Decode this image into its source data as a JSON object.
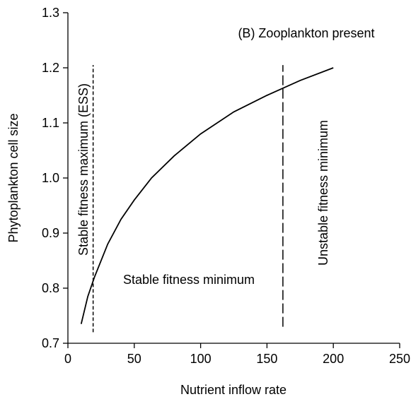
{
  "chart_data": {
    "type": "line",
    "xlabel": "Nutrient inflow rate",
    "ylabel": "Phytoplankton cell size",
    "annotations": [
      "(B) Zooplankton present",
      "Stable fitness maximum (ESS)",
      "Stable fitness minimum",
      "Unstable fitness minimum"
    ],
    "x": [
      10,
      15,
      20,
      30,
      40,
      50,
      63,
      80,
      100,
      125,
      150,
      175,
      200
    ],
    "series": [
      {
        "color": "#000000",
        "values": [
          0.735,
          0.785,
          0.82,
          0.88,
          0.925,
          0.96,
          1.0,
          1.04,
          1.08,
          1.12,
          1.15,
          1.177,
          1.2
        ]
      }
    ],
    "vlines": [
      {
        "x": 19,
        "y": [
          0.72,
          1.205
        ],
        "dash": "short"
      },
      {
        "x": 162,
        "y": [
          0.73,
          1.205
        ],
        "dash": "long"
      }
    ],
    "xlim": [
      0,
      250
    ],
    "xticks": [
      0,
      50,
      100,
      150,
      200,
      250
    ],
    "ylim": [
      0.7,
      1.3
    ],
    "yticks": [
      0.7,
      0.8,
      0.9,
      {
        "value": 1,
        "label": "1.0"
      },
      1.1,
      1.2,
      1.3
    ],
    "grid": false
  }
}
